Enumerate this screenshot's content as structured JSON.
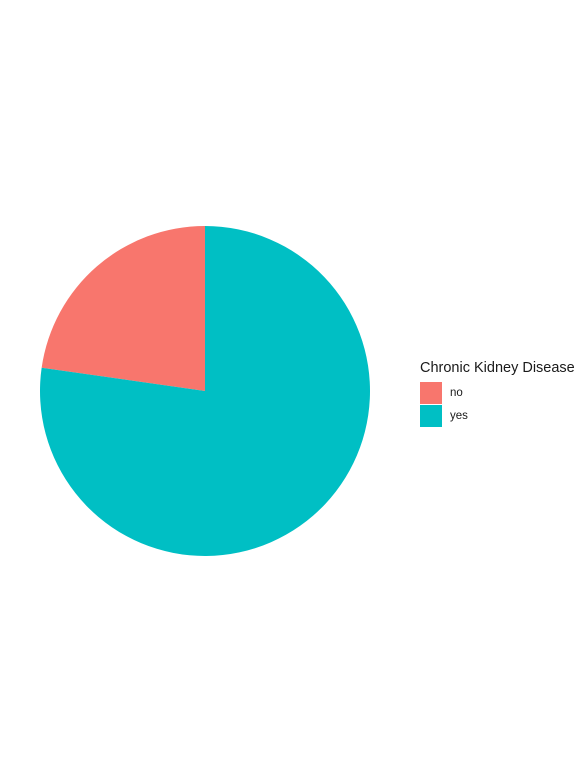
{
  "chart_data": {
    "type": "pie",
    "title": "",
    "legend": {
      "title": "Chronic Kidney Disease",
      "placement": "right"
    },
    "categories": [
      "no",
      "yes"
    ],
    "values": [
      0.2275,
      0.7725
    ],
    "colors": [
      "#F8766D",
      "#00BFC4"
    ],
    "start": "top",
    "direction": "counterclockwise"
  }
}
